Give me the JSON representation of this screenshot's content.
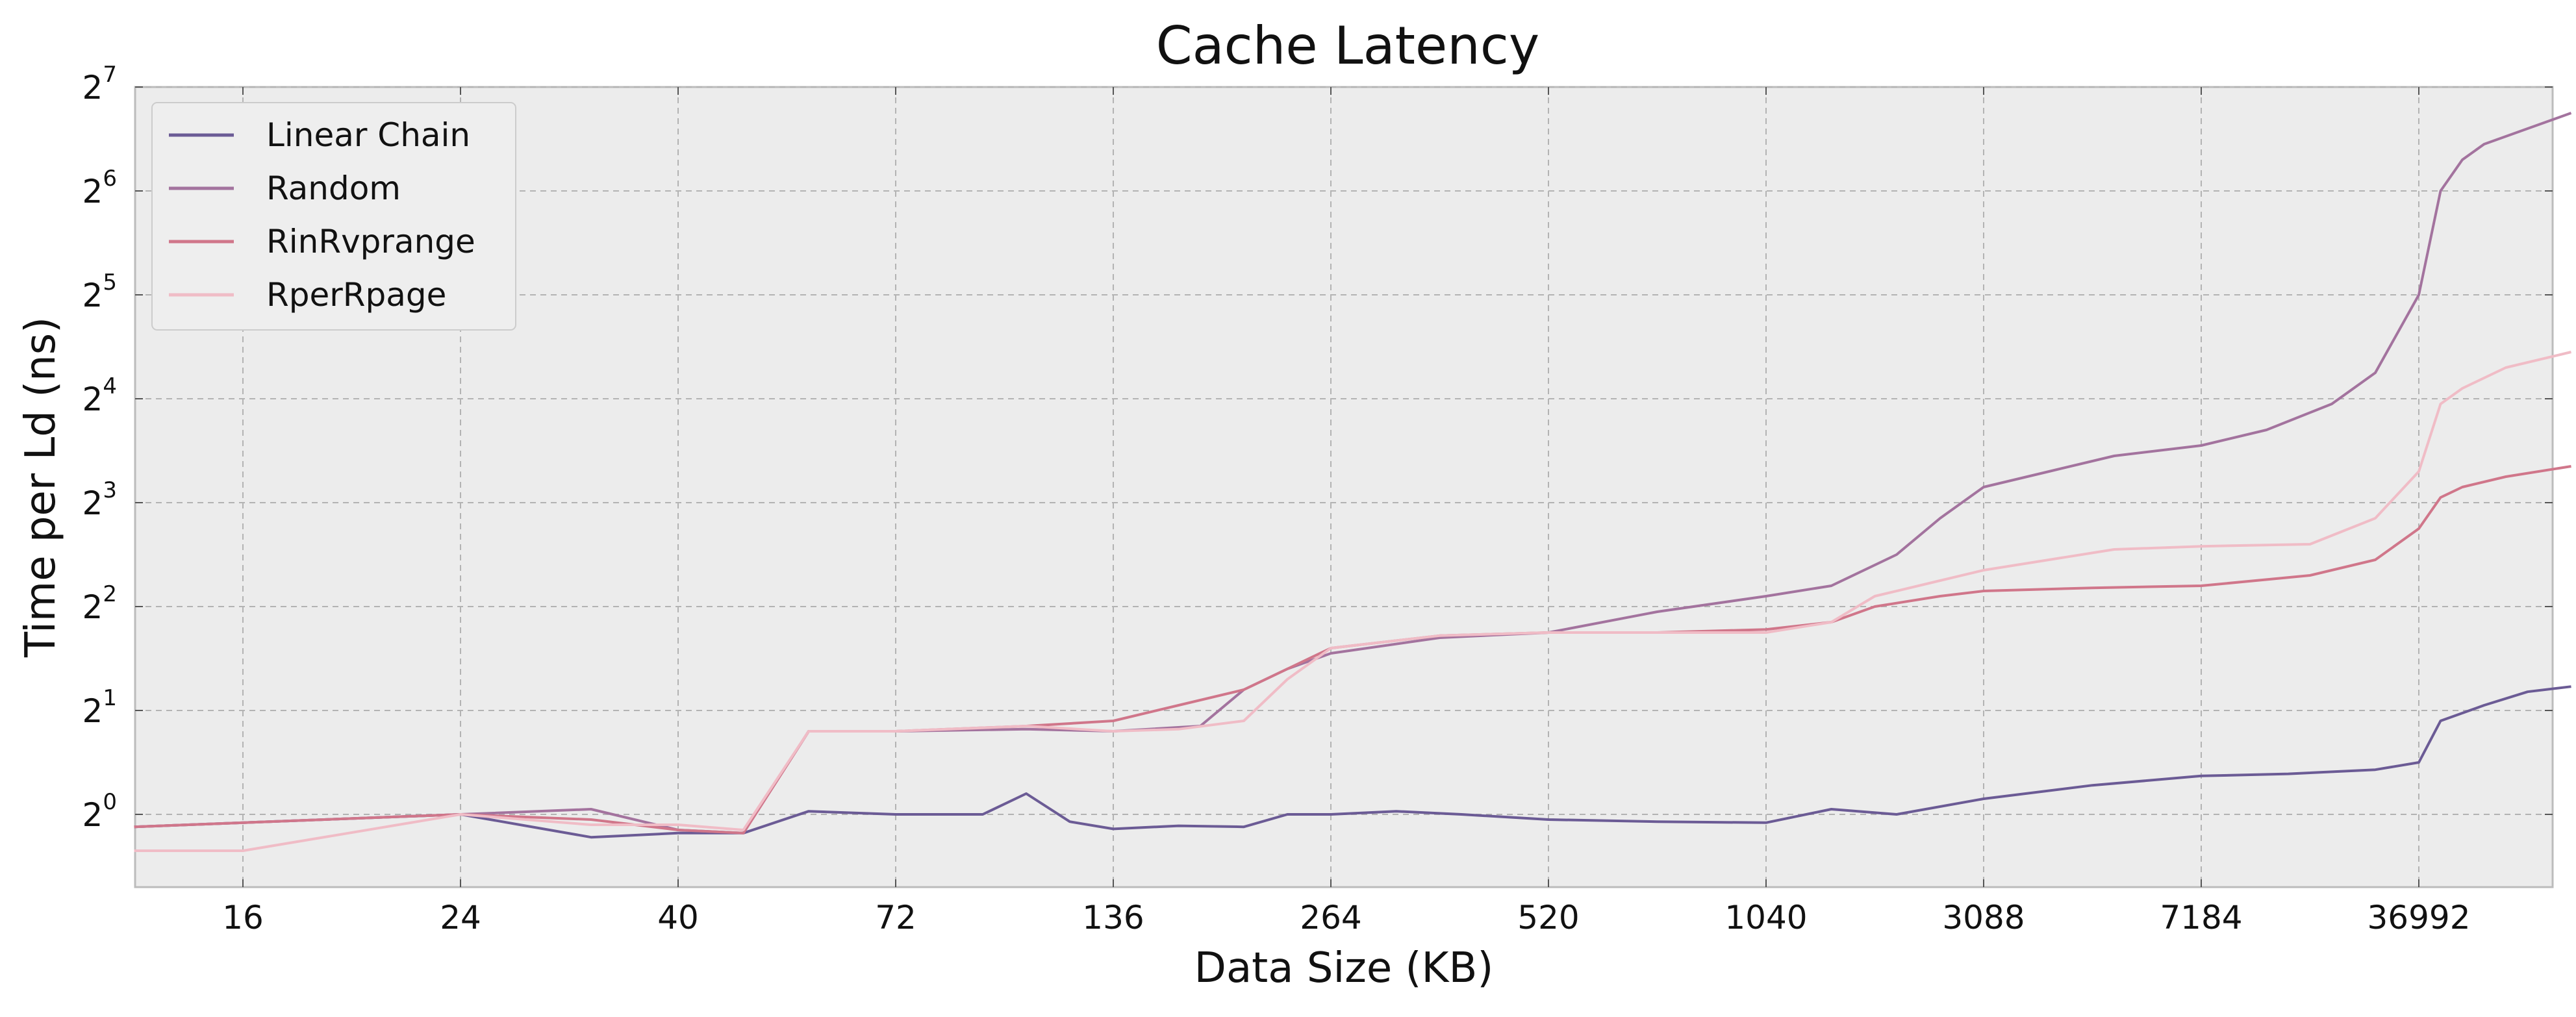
{
  "chart_data": {
    "type": "line",
    "title": "Cache Latency",
    "xlabel": "Data Size (KB)",
    "ylabel": "Time per Ld (ns)",
    "x_scale": "categorical-log-like",
    "x_ticks": [
      "16",
      "24",
      "40",
      "72",
      "136",
      "264",
      "520",
      "1040",
      "3088",
      "7184",
      "36992"
    ],
    "y_scale": "log2",
    "y_ticks": [
      {
        "base": "2",
        "exp": "0"
      },
      {
        "base": "2",
        "exp": "1"
      },
      {
        "base": "2",
        "exp": "2"
      },
      {
        "base": "2",
        "exp": "3"
      },
      {
        "base": "2",
        "exp": "4"
      },
      {
        "base": "2",
        "exp": "5"
      },
      {
        "base": "2",
        "exp": "6"
      },
      {
        "base": "2",
        "exp": "7"
      }
    ],
    "ylim_log2": [
      -0.7,
      7
    ],
    "grid": true,
    "legend": "top-left",
    "series": [
      {
        "name": "Linear Chain",
        "color": "#6b5b95",
        "x_index": [
          -0.5,
          1.0,
          1.6,
          2.0,
          2.3,
          2.6,
          3.0,
          3.4,
          3.6,
          3.8,
          4.0,
          4.3,
          4.6,
          4.8,
          5.0,
          5.3,
          5.6,
          6.0,
          6.5,
          7.0,
          7.3,
          7.6,
          8.0,
          8.5,
          9.0,
          9.4,
          9.8,
          10.0,
          10.1,
          10.3,
          10.5,
          10.7
        ],
        "log2y": [
          -0.12,
          0.0,
          -0.22,
          -0.18,
          -0.18,
          0.03,
          0.0,
          0.0,
          0.2,
          -0.07,
          -0.14,
          -0.11,
          -0.12,
          0.0,
          0.0,
          0.03,
          0.0,
          -0.05,
          -0.07,
          -0.08,
          0.05,
          0.0,
          0.15,
          0.28,
          0.37,
          0.39,
          0.43,
          0.5,
          0.9,
          1.05,
          1.18,
          1.23
        ]
      },
      {
        "name": "Random",
        "color": "#a3739e",
        "x_index": [
          -0.5,
          1.0,
          1.6,
          2.0,
          2.3,
          2.6,
          3.0,
          3.6,
          4.0,
          4.4,
          4.6,
          4.8,
          5.0,
          5.5,
          6.0,
          6.5,
          7.0,
          7.3,
          7.6,
          7.8,
          8.0,
          8.3,
          8.6,
          9.0,
          9.3,
          9.6,
          9.8,
          10.0,
          10.1,
          10.2,
          10.3,
          10.5,
          10.7
        ],
        "log2y": [
          -0.12,
          0.0,
          0.05,
          -0.15,
          -0.18,
          0.8,
          0.8,
          0.82,
          0.8,
          0.85,
          1.2,
          1.4,
          1.55,
          1.7,
          1.75,
          1.95,
          2.1,
          2.2,
          2.5,
          2.85,
          3.15,
          3.3,
          3.45,
          3.55,
          3.7,
          3.95,
          4.25,
          5.0,
          6.0,
          6.3,
          6.45,
          6.6,
          6.75
        ]
      },
      {
        "name": "RinRvprange",
        "color": "#d0768a",
        "x_index": [
          -0.5,
          1.0,
          1.6,
          2.0,
          2.3,
          2.6,
          3.0,
          3.6,
          4.0,
          4.3,
          4.6,
          4.8,
          5.0,
          5.5,
          6.0,
          6.5,
          7.0,
          7.3,
          7.5,
          7.8,
          8.0,
          8.5,
          9.0,
          9.5,
          9.8,
          10.0,
          10.1,
          10.2,
          10.4,
          10.7
        ],
        "log2y": [
          -0.12,
          0.0,
          -0.05,
          -0.15,
          -0.18,
          0.8,
          0.8,
          0.85,
          0.9,
          1.05,
          1.2,
          1.4,
          1.6,
          1.72,
          1.75,
          1.75,
          1.78,
          1.85,
          2.0,
          2.1,
          2.15,
          2.18,
          2.2,
          2.3,
          2.45,
          2.75,
          3.05,
          3.15,
          3.25,
          3.35
        ]
      },
      {
        "name": "RperRpage",
        "color": "#f0bcc6",
        "x_index": [
          -0.5,
          0.0,
          1.0,
          1.6,
          2.0,
          2.3,
          2.6,
          3.0,
          3.6,
          4.0,
          4.3,
          4.6,
          4.8,
          5.0,
          5.5,
          6.0,
          6.5,
          7.0,
          7.3,
          7.5,
          7.8,
          8.0,
          8.3,
          8.6,
          9.0,
          9.5,
          9.8,
          10.0,
          10.1,
          10.2,
          10.4,
          10.7
        ],
        "log2y": [
          -0.35,
          -0.35,
          0.0,
          -0.1,
          -0.1,
          -0.15,
          0.8,
          0.8,
          0.85,
          0.8,
          0.82,
          0.9,
          1.3,
          1.6,
          1.72,
          1.75,
          1.75,
          1.75,
          1.85,
          2.1,
          2.25,
          2.35,
          2.45,
          2.55,
          2.58,
          2.6,
          2.85,
          3.3,
          3.95,
          4.1,
          4.3,
          4.45
        ]
      }
    ]
  }
}
